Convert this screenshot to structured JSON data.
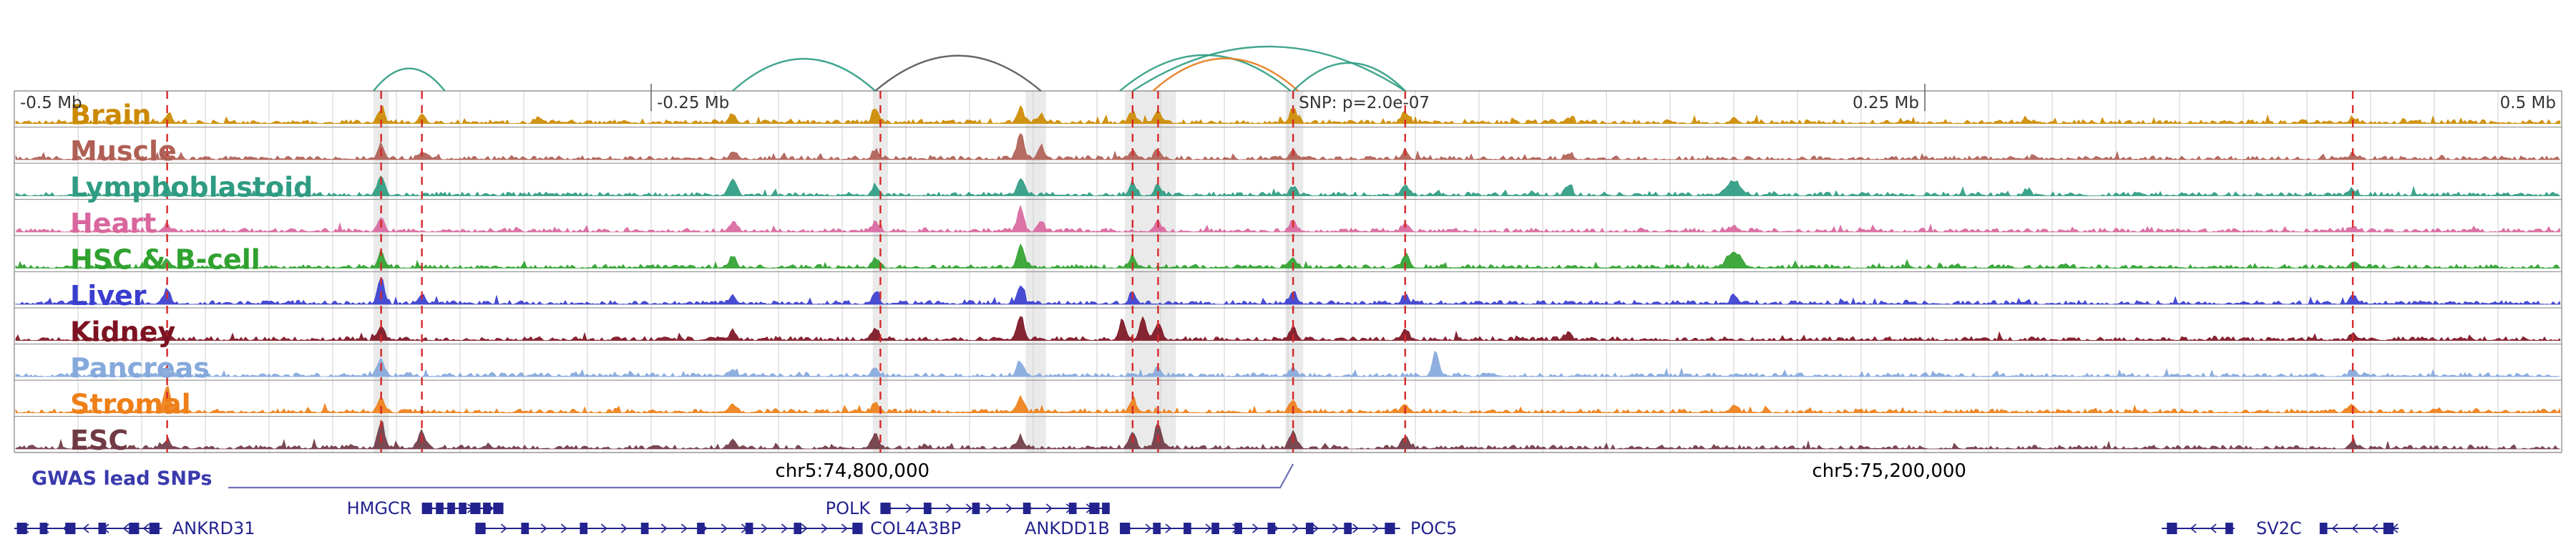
{
  "figure": {
    "type": "genome-browser-locus-plot",
    "background": "#ffffff"
  },
  "chart_data": {
    "type": "area",
    "subtype": "epigenomic-signal-tracks-with-interaction-arcs",
    "x_axis": {
      "range_mb": [
        -0.5,
        0.5
      ],
      "gridline_step": 0.025,
      "ticks": [
        {
          "f": 0.0,
          "label": "-0.5 Mb",
          "anchor": "start",
          "tick": false
        },
        {
          "f": 0.25,
          "label": "-0.25 Mb",
          "anchor": "start",
          "tick": true
        },
        {
          "f": 0.502,
          "label": "SNP: p=2.0e-07",
          "anchor": "start",
          "tick": false
        },
        {
          "f": 0.75,
          "label": "0.25 Mb",
          "anchor": "end",
          "tick": true
        },
        {
          "f": 1.0,
          "label": "0.5 Mb",
          "anchor": "end",
          "tick": false
        }
      ],
      "coordinate_labels": [
        {
          "f": 0.329,
          "label": "chr5:74,800,000"
        },
        {
          "f": 0.736,
          "label": "chr5:75,200,000"
        }
      ]
    },
    "snp": {
      "label": "SNP: p=2.0e-07",
      "p_value": "2.0e-07",
      "f": 0.502
    },
    "snp_lines_f": [
      0.06,
      0.144,
      0.16,
      0.34,
      0.439,
      0.449,
      0.502,
      0.546,
      0.918
    ],
    "highlight_bands": [
      [
        0.141,
        0.006
      ],
      [
        0.337,
        0.006
      ],
      [
        0.397,
        0.008
      ],
      [
        0.436,
        0.02
      ],
      [
        0.499,
        0.007
      ]
    ],
    "arcs": [
      {
        "x1": 0.141,
        "x2": 0.169,
        "color": "#2e9b82"
      },
      {
        "x1": 0.282,
        "x2": 0.338,
        "color": "#2e9b82"
      },
      {
        "x1": 0.338,
        "x2": 0.403,
        "color": "#555555"
      },
      {
        "x1": 0.434,
        "x2": 0.501,
        "color": "#2e9b82"
      },
      {
        "x1": 0.447,
        "x2": 0.504,
        "color": "#e8791a"
      },
      {
        "x1": 0.439,
        "x2": 0.546,
        "color": "#2e9b82"
      },
      {
        "x1": 0.502,
        "x2": 0.546,
        "color": "#2e9b82"
      }
    ],
    "tracks": [
      {
        "name": "Brain",
        "color": "#cc8a00",
        "peaks": [
          [
            0.06,
            0.25
          ],
          [
            0.144,
            0.45
          ],
          [
            0.16,
            0.3
          ],
          [
            0.206,
            0.2
          ],
          [
            0.282,
            0.3
          ],
          [
            0.338,
            0.5
          ],
          [
            0.395,
            0.5
          ],
          [
            0.403,
            0.3
          ],
          [
            0.439,
            0.35
          ],
          [
            0.449,
            0.45
          ],
          [
            0.502,
            0.5
          ],
          [
            0.546,
            0.35
          ],
          [
            0.61,
            0.2
          ],
          [
            0.675,
            0.18
          ],
          [
            0.79,
            0.15
          ],
          [
            0.918,
            0.18
          ]
        ]
      },
      {
        "name": "Muscle",
        "color": "#b05f55",
        "peaks": [
          [
            0.06,
            0.2
          ],
          [
            0.144,
            0.5
          ],
          [
            0.16,
            0.25
          ],
          [
            0.282,
            0.25
          ],
          [
            0.338,
            0.3
          ],
          [
            0.395,
            0.9
          ],
          [
            0.403,
            0.45
          ],
          [
            0.439,
            0.3
          ],
          [
            0.449,
            0.3
          ],
          [
            0.502,
            0.35
          ],
          [
            0.546,
            0.3
          ],
          [
            0.61,
            0.2
          ],
          [
            0.918,
            0.2
          ]
        ]
      },
      {
        "name": "Lymphoblastoid",
        "color": "#2e9b82",
        "peaks": [
          [
            0.06,
            0.25
          ],
          [
            0.144,
            0.7
          ],
          [
            0.282,
            0.6
          ],
          [
            0.338,
            0.35
          ],
          [
            0.395,
            0.6
          ],
          [
            0.439,
            0.45
          ],
          [
            0.449,
            0.35
          ],
          [
            0.502,
            0.3
          ],
          [
            0.546,
            0.35
          ],
          [
            0.61,
            0.3
          ],
          [
            0.675,
            0.5,
            9
          ],
          [
            0.79,
            0.2
          ],
          [
            0.918,
            0.2
          ]
        ]
      },
      {
        "name": "Heart",
        "color": "#d9679e",
        "peaks": [
          [
            0.06,
            0.2
          ],
          [
            0.144,
            0.5
          ],
          [
            0.282,
            0.3
          ],
          [
            0.338,
            0.3
          ],
          [
            0.395,
            0.85
          ],
          [
            0.403,
            0.35
          ],
          [
            0.449,
            0.35
          ],
          [
            0.502,
            0.35
          ],
          [
            0.546,
            0.3
          ],
          [
            0.675,
            0.2
          ],
          [
            0.918,
            0.15
          ]
        ]
      },
      {
        "name": "HSC & B-cell",
        "color": "#2fa12f",
        "peaks": [
          [
            0.06,
            0.25
          ],
          [
            0.144,
            0.55
          ],
          [
            0.282,
            0.4
          ],
          [
            0.338,
            0.3
          ],
          [
            0.395,
            0.8
          ],
          [
            0.439,
            0.4
          ],
          [
            0.502,
            0.35
          ],
          [
            0.546,
            0.45
          ],
          [
            0.675,
            0.55,
            9
          ],
          [
            0.918,
            0.2
          ]
        ]
      },
      {
        "name": "Liver",
        "color": "#3a3ecf",
        "peaks": [
          [
            0.06,
            0.5
          ],
          [
            0.144,
            0.9
          ],
          [
            0.16,
            0.35
          ],
          [
            0.282,
            0.3
          ],
          [
            0.338,
            0.35
          ],
          [
            0.395,
            0.55
          ],
          [
            0.439,
            0.4
          ],
          [
            0.502,
            0.4
          ],
          [
            0.546,
            0.3
          ],
          [
            0.675,
            0.25
          ],
          [
            0.918,
            0.25
          ]
        ]
      },
      {
        "name": "Kidney",
        "color": "#7d1322",
        "peaks": [
          [
            0.06,
            0.3
          ],
          [
            0.144,
            0.5
          ],
          [
            0.282,
            0.3
          ],
          [
            0.338,
            0.4
          ],
          [
            0.395,
            0.85
          ],
          [
            0.435,
            0.7
          ],
          [
            0.443,
            0.8
          ],
          [
            0.449,
            0.6
          ],
          [
            0.502,
            0.45
          ],
          [
            0.546,
            0.35
          ],
          [
            0.61,
            0.2
          ],
          [
            0.918,
            0.2
          ]
        ]
      },
      {
        "name": "Pancreas",
        "color": "#85a9dc",
        "peaks": [
          [
            0.06,
            0.25
          ],
          [
            0.144,
            0.6
          ],
          [
            0.282,
            0.25
          ],
          [
            0.338,
            0.3
          ],
          [
            0.395,
            0.5
          ],
          [
            0.449,
            0.3
          ],
          [
            0.502,
            0.3
          ],
          [
            0.558,
            0.85
          ],
          [
            0.918,
            0.2
          ]
        ]
      },
      {
        "name": "Stromal",
        "color": "#ee7f18",
        "peaks": [
          [
            0.06,
            0.9
          ],
          [
            0.144,
            0.55
          ],
          [
            0.282,
            0.3
          ],
          [
            0.338,
            0.35
          ],
          [
            0.395,
            0.55
          ],
          [
            0.439,
            0.45
          ],
          [
            0.502,
            0.4
          ],
          [
            0.546,
            0.3
          ],
          [
            0.675,
            0.25
          ],
          [
            0.918,
            0.25
          ]
        ]
      },
      {
        "name": "ESC",
        "color": "#703a44",
        "peaks": [
          [
            0.06,
            0.3
          ],
          [
            0.144,
            0.95
          ],
          [
            0.16,
            0.6
          ],
          [
            0.282,
            0.3
          ],
          [
            0.338,
            0.55
          ],
          [
            0.395,
            0.4
          ],
          [
            0.439,
            0.6
          ],
          [
            0.449,
            0.9
          ],
          [
            0.502,
            0.6
          ],
          [
            0.546,
            0.4
          ],
          [
            0.918,
            0.25
          ]
        ]
      }
    ],
    "gwas": {
      "label": "GWAS lead SNPs",
      "text_color": "#3a3aad",
      "line_color": "#7070bb",
      "line_start_f": 0.084,
      "line_end_f": 0.502
    },
    "genes": [
      {
        "name": "ANKRD31",
        "row": 2,
        "start": 0.0,
        "end": 0.058,
        "strand": "<",
        "label_f": 0.062,
        "anchor": "start",
        "exons": [
          [
            0.001,
            0.004
          ],
          [
            0.01,
            0.003
          ],
          [
            0.02,
            0.004
          ],
          [
            0.033,
            0.003
          ],
          [
            0.045,
            0.004
          ],
          [
            0.053,
            0.004
          ]
        ]
      },
      {
        "name": "HMGCR",
        "row": 1,
        "start": 0.16,
        "end": 0.192,
        "strand": ">",
        "label_f": 0.156,
        "anchor": "end",
        "exons": [
          [
            0.16,
            0.004
          ],
          [
            0.1655,
            0.003
          ],
          [
            0.17,
            0.003
          ],
          [
            0.1745,
            0.003
          ],
          [
            0.179,
            0.004
          ],
          [
            0.184,
            0.003
          ],
          [
            0.188,
            0.004
          ]
        ]
      },
      {
        "name": "COL4A3BP",
        "row": 2,
        "start": 0.181,
        "end": 0.333,
        "strand": ">",
        "label_f": 0.336,
        "anchor": "start",
        "exons": [
          [
            0.181,
            0.004
          ],
          [
            0.199,
            0.003
          ],
          [
            0.222,
            0.003
          ],
          [
            0.246,
            0.003
          ],
          [
            0.268,
            0.003
          ],
          [
            0.287,
            0.003
          ],
          [
            0.306,
            0.003
          ],
          [
            0.329,
            0.004
          ]
        ]
      },
      {
        "name": "POLK",
        "row": 1,
        "start": 0.34,
        "end": 0.43,
        "strand": ">",
        "label_f": 0.336,
        "anchor": "end",
        "exons": [
          [
            0.34,
            0.004
          ],
          [
            0.357,
            0.003
          ],
          [
            0.376,
            0.003
          ],
          [
            0.396,
            0.003
          ],
          [
            0.414,
            0.003
          ],
          [
            0.422,
            0.004
          ],
          [
            0.427,
            0.003
          ]
        ]
      },
      {
        "name": "ANKDD1B",
        "row": 2,
        "start": 0.434,
        "end": 0.476,
        "strand": ">",
        "label_f": 0.43,
        "anchor": "end",
        "exons": [
          [
            0.434,
            0.004
          ],
          [
            0.447,
            0.003
          ],
          [
            0.459,
            0.003
          ],
          [
            0.47,
            0.003
          ]
        ]
      },
      {
        "name": "POC5",
        "row": 2,
        "start": 0.476,
        "end": 0.544,
        "strand": ">",
        "label_f": 0.548,
        "anchor": "start",
        "exons": [
          [
            0.479,
            0.003
          ],
          [
            0.492,
            0.003
          ],
          [
            0.507,
            0.003
          ],
          [
            0.522,
            0.003
          ],
          [
            0.538,
            0.004
          ]
        ]
      },
      {
        "name": "SV2C",
        "row": 2,
        "start": 0.843,
        "end": 0.936,
        "strand": "<",
        "label_f": 0.889,
        "anchor": "middle",
        "exons": [
          [
            0.845,
            0.004
          ],
          [
            0.868,
            0.003
          ],
          [
            0.905,
            0.003
          ],
          [
            0.93,
            0.004
          ]
        ]
      }
    ],
    "colors": {
      "grid": "#cfcfcf",
      "rule": "#9a9a9a",
      "border": "#808080",
      "snp_line": "#d62828",
      "gene": "#23238f",
      "tick_text": "#333333",
      "highlight": "rgba(160,160,160,0.22)"
    }
  }
}
